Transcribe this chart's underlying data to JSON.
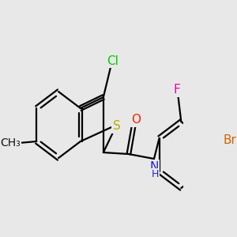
{
  "background_color": "#e8e8e8",
  "bond_color": "#000000",
  "bond_width": 1.6,
  "figsize": [
    3.0,
    3.0
  ],
  "dpi": 100,
  "atom_labels": {
    "Cl": {
      "color": "#00cc00",
      "fontsize": 11
    },
    "O": {
      "color": "#ff2200",
      "fontsize": 11
    },
    "F": {
      "color": "#ee00aa",
      "fontsize": 11
    },
    "Br": {
      "color": "#cc6600",
      "fontsize": 11
    },
    "S": {
      "color": "#bbaa00",
      "fontsize": 11
    },
    "N": {
      "color": "#2222dd",
      "fontsize": 11
    },
    "Me": {
      "color": "#111111",
      "fontsize": 10
    }
  }
}
